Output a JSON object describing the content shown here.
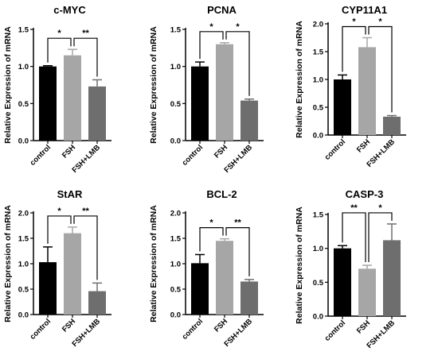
{
  "chart_data": [
    {
      "type": "bar",
      "title": "c-MYC",
      "ylabel": "Relative Expression of mRNA",
      "ylim": [
        0,
        1.5
      ],
      "yticks": [
        "0.0",
        "0.5",
        "1.0",
        "1.5"
      ],
      "categories": [
        "control",
        "FSH",
        "FSH+LMB"
      ],
      "values": [
        1.0,
        1.15,
        0.73
      ],
      "errors": [
        0.01,
        0.08,
        0.09
      ],
      "colors": [
        "#000000",
        "#a6a6a6",
        "#6e6e6e"
      ],
      "significance": [
        {
          "from": 0,
          "to": 1,
          "label": "*"
        },
        {
          "from": 1,
          "to": 2,
          "label": "**"
        }
      ]
    },
    {
      "type": "bar",
      "title": "PCNA",
      "ylabel": "Relative Expression of mRNA",
      "ylim": [
        0,
        1.5
      ],
      "yticks": [
        "0.0",
        "0.5",
        "1.0",
        "1.5"
      ],
      "categories": [
        "control",
        "FSH",
        "FSH+LMB"
      ],
      "values": [
        1.0,
        1.3,
        0.54
      ],
      "errors": [
        0.06,
        0.02,
        0.02
      ],
      "colors": [
        "#000000",
        "#a6a6a6",
        "#6e6e6e"
      ],
      "significance": [
        {
          "from": 0,
          "to": 1,
          "label": "*"
        },
        {
          "from": 1,
          "to": 2,
          "label": "*"
        }
      ]
    },
    {
      "type": "bar",
      "title": "CYP11A1",
      "ylabel": "Relative Expression of mRNA",
      "ylim": [
        0,
        2.0
      ],
      "yticks": [
        "0.0",
        "0.5",
        "1.0",
        "1.5",
        "2.0"
      ],
      "categories": [
        "control",
        "FSH",
        "FSH+LMB"
      ],
      "values": [
        1.0,
        1.58,
        0.33
      ],
      "errors": [
        0.08,
        0.17,
        0.02
      ],
      "colors": [
        "#000000",
        "#a6a6a6",
        "#6e6e6e"
      ],
      "significance": [
        {
          "from": 0,
          "to": 1,
          "label": "*"
        },
        {
          "from": 1,
          "to": 2,
          "label": "*"
        }
      ]
    },
    {
      "type": "bar",
      "title": "StAR",
      "ylabel": "Relative Expression of mRNA",
      "ylim": [
        0,
        2.0
      ],
      "yticks": [
        "0.0",
        "0.5",
        "1.0",
        "1.5",
        "2.0"
      ],
      "categories": [
        "control",
        "FSH",
        "FSH+LMB"
      ],
      "values": [
        1.03,
        1.6,
        0.46
      ],
      "errors": [
        0.3,
        0.12,
        0.16
      ],
      "colors": [
        "#000000",
        "#a6a6a6",
        "#6e6e6e"
      ],
      "significance": [
        {
          "from": 0,
          "to": 1,
          "label": "*"
        },
        {
          "from": 1,
          "to": 2,
          "label": "**"
        }
      ]
    },
    {
      "type": "bar",
      "title": "BCL-2",
      "ylabel": "Relative Expression of mRNA",
      "ylim": [
        0,
        2.0
      ],
      "yticks": [
        "0.0",
        "0.5",
        "1.0",
        "1.5",
        "2.0"
      ],
      "categories": [
        "control",
        "FSH",
        "FSH+LMB"
      ],
      "values": [
        1.01,
        1.45,
        0.65
      ],
      "errors": [
        0.17,
        0.04,
        0.04
      ],
      "colors": [
        "#000000",
        "#a6a6a6",
        "#6e6e6e"
      ],
      "significance": [
        {
          "from": 0,
          "to": 1,
          "label": "*"
        },
        {
          "from": 1,
          "to": 2,
          "label": "**"
        }
      ]
    },
    {
      "type": "bar",
      "title": "CASP-3",
      "ylabel": "Relative Expression of mRNA",
      "ylim": [
        0,
        1.5
      ],
      "yticks": [
        "0.0",
        "0.5",
        "1.0",
        "1.5"
      ],
      "categories": [
        "control",
        "FSH",
        "FSH+LMB"
      ],
      "values": [
        1.0,
        0.7,
        1.12
      ],
      "errors": [
        0.04,
        0.05,
        0.24
      ],
      "colors": [
        "#000000",
        "#a6a6a6",
        "#6e6e6e"
      ],
      "significance": [
        {
          "from": 0,
          "to": 1,
          "label": "**"
        },
        {
          "from": 1,
          "to": 2,
          "label": "*"
        }
      ]
    }
  ]
}
